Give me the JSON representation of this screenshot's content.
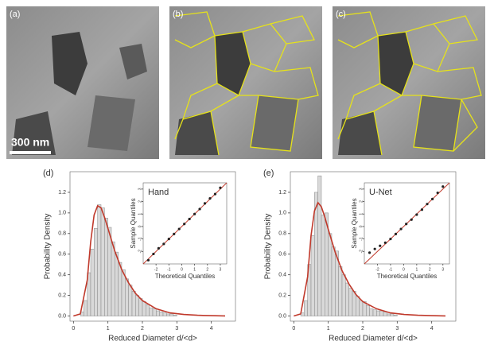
{
  "panels": [
    "(a)",
    "(b)",
    "(c)"
  ],
  "scale_bar": "300 nm",
  "chart_data": [
    {
      "type": "histogram",
      "label": "(d)",
      "xlabel": "Reduced Diameter d/<d>",
      "ylabel": "Probability Density",
      "bins": [
        0.2,
        0.3,
        0.4,
        0.5,
        0.6,
        0.7,
        0.8,
        0.9,
        1.0,
        1.1,
        1.2,
        1.3,
        1.4,
        1.5,
        1.6,
        1.7,
        1.8,
        1.9,
        2.0,
        2.1,
        2.2,
        2.3,
        2.4,
        2.5,
        2.6,
        2.7,
        2.8,
        2.9,
        3.0
      ],
      "values": [
        0.04,
        0.15,
        0.42,
        0.65,
        0.85,
        1.08,
        1.05,
        0.95,
        0.86,
        0.72,
        0.62,
        0.52,
        0.45,
        0.36,
        0.3,
        0.24,
        0.2,
        0.17,
        0.14,
        0.11,
        0.08,
        0.07,
        0.05,
        0.04,
        0.03,
        0.02,
        0.02,
        0.01
      ],
      "color": "#d9d9d9",
      "fit_x": [
        0,
        0.2,
        0.4,
        0.5,
        0.6,
        0.7,
        0.8,
        0.9,
        1.0,
        1.2,
        1.4,
        1.6,
        1.8,
        2.0,
        2.4,
        2.8,
        3.2,
        3.6,
        4.0,
        4.4
      ],
      "fit_y": [
        0,
        0.02,
        0.35,
        0.72,
        0.98,
        1.07,
        1.05,
        0.96,
        0.85,
        0.63,
        0.45,
        0.32,
        0.22,
        0.15,
        0.07,
        0.03,
        0.015,
        0.007,
        0.003,
        0.001
      ],
      "fit_color": "#c0392b",
      "xlim": [
        -0.1,
        4.7
      ],
      "ylim": [
        -0.05,
        1.4
      ],
      "xticks": [
        0,
        1,
        2,
        3,
        4
      ],
      "yticks": [
        {
          "value": 0,
          "label": "0.0"
        },
        0.2,
        0.4,
        0.6,
        0.8,
        {
          "value": 1,
          "label": "1.0"
        },
        1.2
      ],
      "inset": {
        "type": "scatter",
        "title": "Hand",
        "xlabel": "Theoretical Quantiles",
        "ylabel": "Sample Quantiles",
        "x": [
          -2.6,
          -2.2,
          -1.8,
          -1.4,
          -1.0,
          -0.6,
          -0.2,
          0.2,
          0.6,
          1.0,
          1.4,
          1.8,
          2.2,
          2.6,
          3.0
        ],
        "y": [
          -2.7,
          -2.2,
          -1.75,
          -1.4,
          -1.0,
          -0.6,
          -0.2,
          0.2,
          0.6,
          1.0,
          1.4,
          1.85,
          2.25,
          2.6,
          3.1
        ],
        "color": "#222",
        "line_x": [
          -3,
          3.5
        ],
        "line_y": [
          -3,
          3.5
        ],
        "line_color": "#c0392b",
        "xlim": [
          -3,
          3.5
        ],
        "ylim": [
          -3,
          3.5
        ],
        "xticks": [
          -2,
          -1,
          0,
          1,
          2,
          3
        ],
        "yticks": [
          -2,
          -1,
          0,
          1,
          2,
          3
        ]
      }
    },
    {
      "type": "histogram",
      "label": "(e)",
      "xlabel": "Reduced Diameter d/<d>",
      "ylabel": "Probability Density",
      "bins": [
        0.2,
        0.3,
        0.4,
        0.5,
        0.6,
        0.7,
        0.8,
        0.9,
        1.0,
        1.1,
        1.2,
        1.3,
        1.4,
        1.5,
        1.6,
        1.7,
        1.8,
        1.9,
        2.0,
        2.1,
        2.2,
        2.3,
        2.4,
        2.5,
        2.6,
        2.7,
        2.8,
        2.9,
        3.0
      ],
      "values": [
        0.03,
        0.15,
        0.5,
        0.78,
        1.2,
        1.36,
        0.98,
        1.0,
        0.8,
        0.67,
        0.63,
        0.48,
        0.4,
        0.32,
        0.27,
        0.24,
        0.19,
        0.15,
        0.14,
        0.1,
        0.07,
        0.06,
        0.05,
        0.05,
        0.04,
        0.02,
        0.02,
        0.01
      ],
      "color": "#d9d9d9",
      "fit_x": [
        0,
        0.2,
        0.4,
        0.5,
        0.6,
        0.7,
        0.8,
        0.9,
        1.0,
        1.2,
        1.4,
        1.6,
        1.8,
        2.0,
        2.4,
        2.8,
        3.2,
        3.6,
        4.0,
        4.4
      ],
      "fit_y": [
        0,
        0.02,
        0.38,
        0.78,
        1.02,
        1.1,
        1.06,
        0.96,
        0.84,
        0.62,
        0.44,
        0.31,
        0.21,
        0.14,
        0.07,
        0.03,
        0.015,
        0.007,
        0.003,
        0.001
      ],
      "fit_color": "#c0392b",
      "xlim": [
        -0.1,
        4.7
      ],
      "ylim": [
        -0.05,
        1.4
      ],
      "xticks": [
        0,
        1,
        2,
        3,
        4
      ],
      "yticks": [
        {
          "value": 0,
          "label": "0.0"
        },
        0.2,
        0.4,
        0.6,
        0.8,
        {
          "value": 1,
          "label": "1.0"
        },
        1.2
      ],
      "inset": {
        "type": "scatter",
        "title": "U-Net",
        "xlabel": "Theoretical Quantiles",
        "ylabel": "Sample Quantiles",
        "x": [
          -2.6,
          -2.2,
          -1.8,
          -1.4,
          -1.0,
          -0.6,
          -0.2,
          0.2,
          0.6,
          1.0,
          1.4,
          1.8,
          2.2,
          2.6,
          3.0
        ],
        "y": [
          -2.1,
          -1.8,
          -1.55,
          -1.3,
          -1.0,
          -0.6,
          -0.2,
          0.2,
          0.55,
          0.95,
          1.35,
          1.8,
          2.2,
          2.7,
          3.2
        ],
        "color": "#222",
        "line_x": [
          -3,
          3.5
        ],
        "line_y": [
          -3,
          3.5
        ],
        "line_color": "#c0392b",
        "xlim": [
          -3,
          3.5
        ],
        "ylim": [
          -3,
          3.5
        ],
        "xticks": [
          -2,
          -1,
          0,
          1,
          2,
          3
        ],
        "yticks": [
          -2,
          -1,
          0,
          1,
          2,
          3
        ]
      }
    }
  ]
}
